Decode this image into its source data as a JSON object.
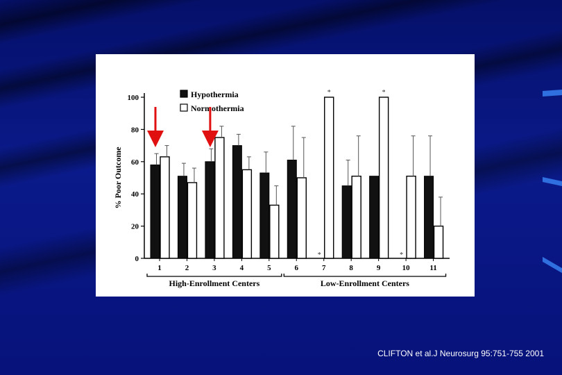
{
  "citation": "CLIFTON et al.J Neurosurg 95:751-755 2001",
  "colors": {
    "hypothermia": "#111111",
    "normothermia": "#ffffff",
    "arrow": "#e01010",
    "background": "#0a1a8a"
  },
  "chart_data": {
    "type": "bar",
    "title": "",
    "ylabel": "% Poor Outcome",
    "xlabel": "",
    "ylim": [
      0,
      100
    ],
    "yticks": [
      0,
      20,
      40,
      60,
      80,
      100
    ],
    "categories": [
      "1",
      "2",
      "3",
      "4",
      "5",
      "6",
      "7",
      "8",
      "9",
      "10",
      "11"
    ],
    "series": [
      {
        "name": "Hypothermia",
        "values": [
          58,
          51,
          60,
          70,
          53,
          61,
          0,
          45,
          51,
          0,
          51
        ],
        "errors": [
          7,
          8,
          8,
          7,
          13,
          21,
          0,
          16,
          0,
          0,
          25
        ]
      },
      {
        "name": "Normothermia",
        "values": [
          63,
          47,
          75,
          55,
          33,
          50,
          100,
          51,
          100,
          51,
          20
        ],
        "errors": [
          7,
          9,
          7,
          8,
          12,
          25,
          0,
          25,
          0,
          25,
          18
        ]
      }
    ],
    "annotations": [
      "*",
      "*",
      "*",
      "*",
      "*"
    ],
    "groups": [
      {
        "label": "High-Enrollment Centers",
        "from": "1",
        "to": "5"
      },
      {
        "label": "Low-Enrollment Centers",
        "from": "6",
        "to": "11"
      }
    ],
    "highlighted_categories": [
      "1",
      "3"
    ],
    "legend_position": "top-left",
    "grid": false
  }
}
